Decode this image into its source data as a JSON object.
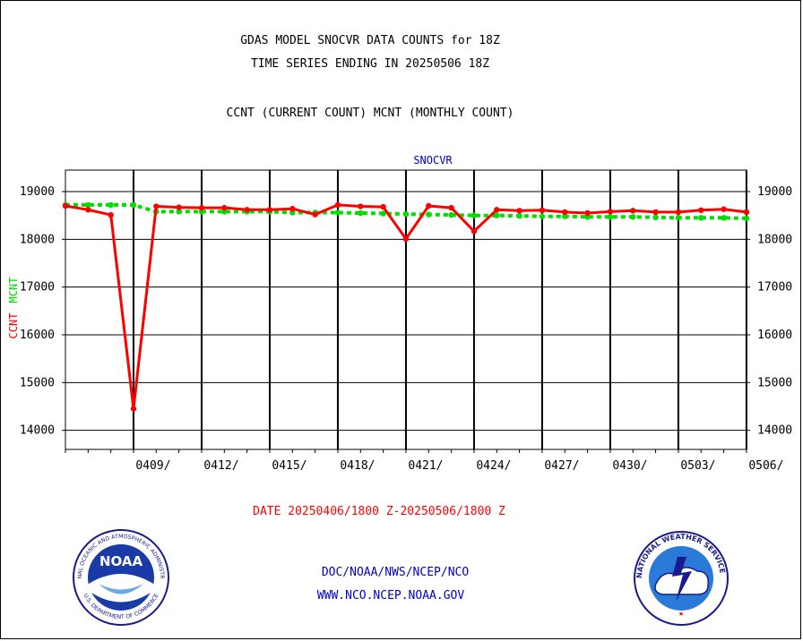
{
  "header": {
    "title_line1": "GDAS MODEL SNOCVR DATA COUNTS for 18Z",
    "title_line2": "TIME SERIES ENDING IN 20250506 18Z",
    "subtitle": "CCNT (CURRENT COUNT) MCNT (MONTHLY COUNT)"
  },
  "footer": {
    "date_range": "DATE 20250406/1800 Z-20250506/1800 Z",
    "org_line": "DOC/NOAA/NWS/NCEP/NCO",
    "url_line": "WWW.NCO.NCEP.NOAA.GOV"
  },
  "logos": {
    "noaa_text": "NOAA",
    "noaa_ring_text": "NATIONAL OCEANIC AND ATMOSPHERIC ADMINISTRATION",
    "noaa_bottom_text": "U.S. DEPARTMENT OF COMMERCE",
    "nws_ring_text": "NATIONAL WEATHER SERVICE"
  },
  "colors": {
    "ccnt": "#ff0000",
    "mcnt": "#00dd00",
    "panel_label": "#0000cc",
    "footer_blue": "#0000cc"
  },
  "chart_data": {
    "type": "line",
    "panel_label": "SNOCVR",
    "ylabel_ccnt": "CCNT",
    "ylabel_mcnt": "MCNT",
    "ylim": [
      13600,
      19450
    ],
    "yticks": [
      14000,
      15000,
      16000,
      17000,
      18000,
      19000
    ],
    "ytick_labels": [
      "14000",
      "15000",
      "16000",
      "17000",
      "18000",
      "19000"
    ],
    "xlim": [
      0,
      30.7
    ],
    "xtick_positions": [
      3,
      6,
      9,
      12,
      15,
      18,
      21,
      24,
      27,
      30
    ],
    "xtick_labels": [
      "0409/",
      "0412/",
      "0415/",
      "0418/",
      "0421/",
      "0424/",
      "0427/",
      "0430/",
      "0503/",
      "0506/"
    ],
    "grid": true,
    "series": [
      {
        "name": "CCNT",
        "x": [
          0,
          1,
          2,
          3,
          4,
          5,
          6,
          7,
          8,
          9,
          10,
          11,
          12,
          13,
          14,
          15,
          16,
          17,
          18,
          19,
          20,
          21,
          22,
          23,
          24,
          25,
          26,
          27,
          28,
          29,
          30
        ],
        "values": [
          18700,
          18620,
          18510,
          14450,
          18690,
          18670,
          18660,
          18660,
          18620,
          18620,
          18640,
          18520,
          18720,
          18690,
          18680,
          18010,
          18700,
          18660,
          18170,
          18620,
          18600,
          18610,
          18570,
          18550,
          18580,
          18600,
          18570,
          18570,
          18610,
          18630,
          18570
        ]
      },
      {
        "name": "MCNT",
        "x": [
          0,
          1,
          2,
          3,
          4,
          5,
          6,
          7,
          8,
          9,
          10,
          11,
          12,
          13,
          14,
          15,
          16,
          17,
          18,
          19,
          20,
          21,
          22,
          23,
          24,
          25,
          26,
          27,
          28,
          29,
          30
        ],
        "values": [
          18720,
          18720,
          18720,
          18720,
          18580,
          18580,
          18580,
          18580,
          18580,
          18580,
          18560,
          18560,
          18560,
          18550,
          18540,
          18530,
          18520,
          18510,
          18500,
          18500,
          18490,
          18480,
          18480,
          18470,
          18470,
          18470,
          18460,
          18450,
          18450,
          18450,
          18440
        ]
      }
    ]
  }
}
